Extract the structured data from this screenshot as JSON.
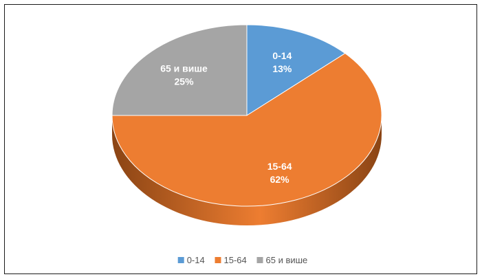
{
  "chart_data": {
    "type": "pie",
    "title": "",
    "categories": [
      "0-14",
      "15-64",
      "65 и више"
    ],
    "values": [
      13,
      62,
      25
    ],
    "labels": [
      "13%",
      "62%",
      "25%"
    ],
    "colors": [
      "#5B9BD5",
      "#ED7D31",
      "#A5A5A5"
    ],
    "side_colors": [
      "#2f5f8d",
      "#8a4414",
      "#666666"
    ],
    "legend": {
      "placement": "bottom",
      "items": [
        "0-14",
        "15-64",
        "65 и више"
      ]
    },
    "three_d": true
  }
}
